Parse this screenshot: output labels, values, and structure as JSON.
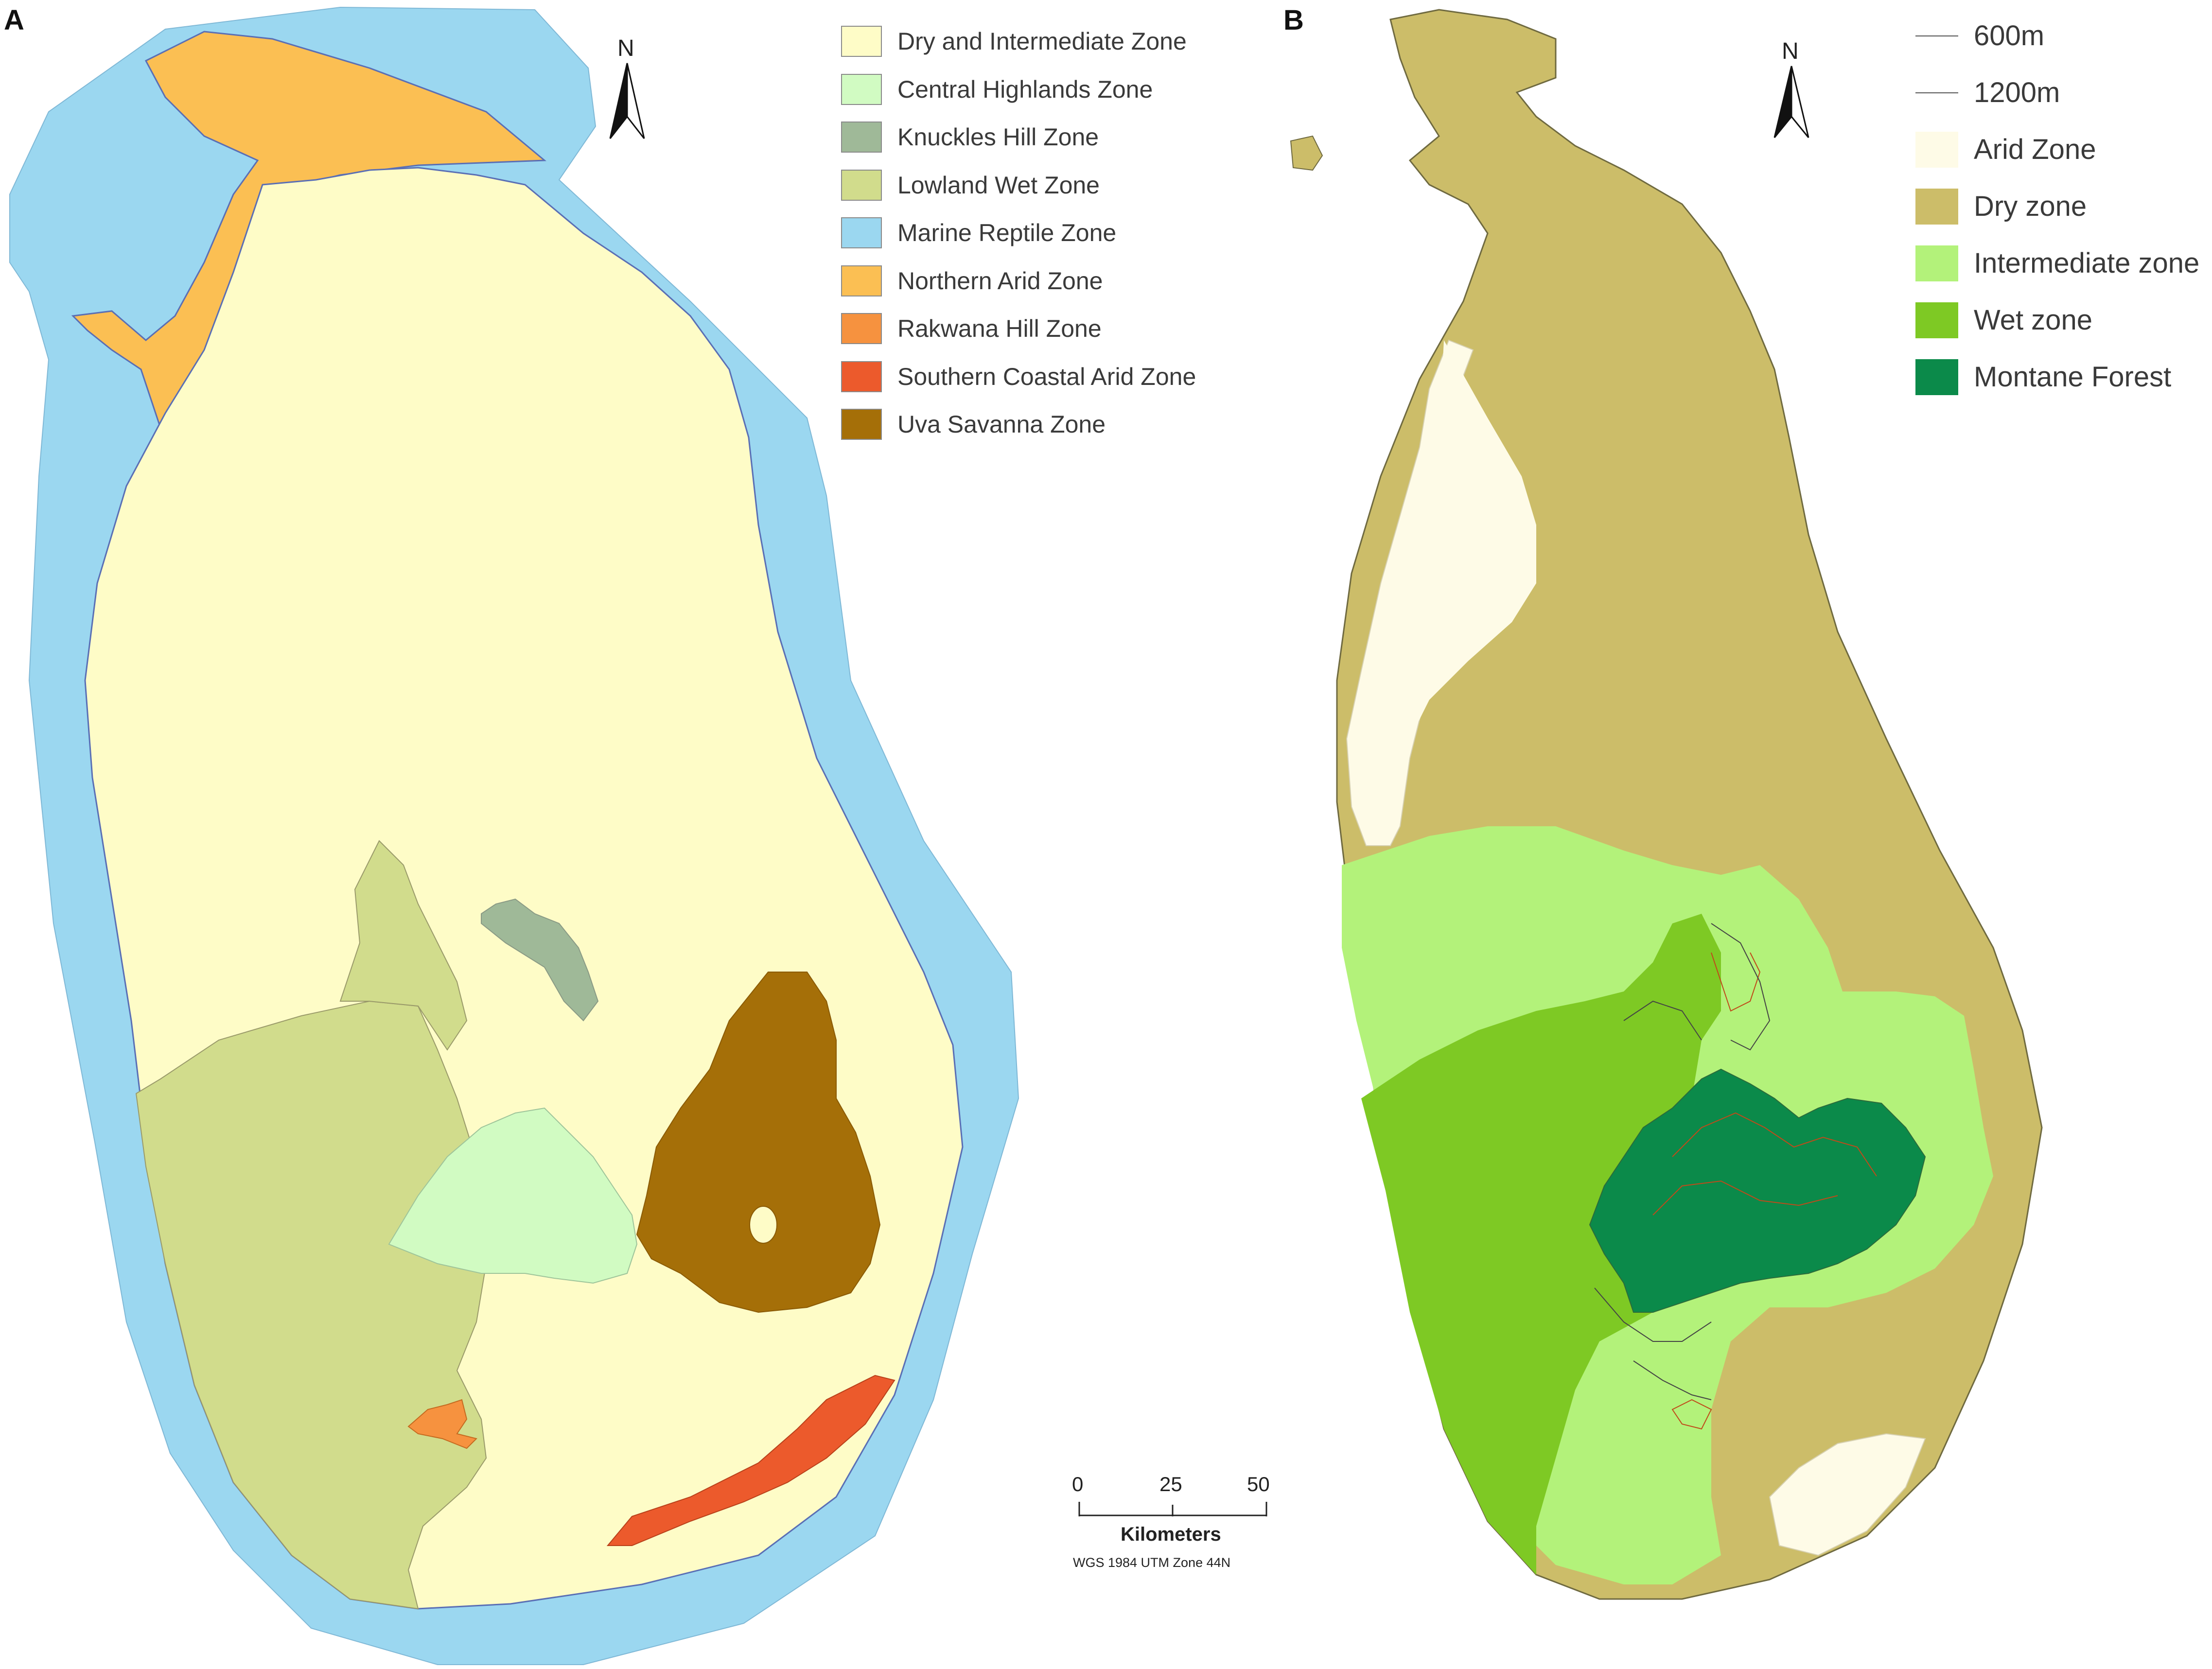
{
  "panel_a": {
    "letter": "A",
    "north_label": "N",
    "legend": [
      {
        "label": "Dry and Intermediate Zone",
        "color": "#fefcc7"
      },
      {
        "label": "Central Highlands Zone",
        "color": "#d1fbc2"
      },
      {
        "label": "Knuckles Hill Zone",
        "color": "#9fb998"
      },
      {
        "label": "Lowland Wet Zone",
        "color": "#d1dc8c"
      },
      {
        "label": "Marine Reptile Zone",
        "color": "#9bd7f0"
      },
      {
        "label": "Northern Arid Zone",
        "color": "#fbbf53"
      },
      {
        "label": "Rakwana Hill Zone",
        "color": "#f6923f"
      },
      {
        "label": "Southern Coastal Arid Zone",
        "color": "#ec5a2c"
      },
      {
        "label": "Uva Savanna Zone",
        "color": "#a56f08"
      }
    ]
  },
  "panel_b": {
    "letter": "B",
    "north_label": "N",
    "contour_legend": [
      {
        "label": "600m"
      },
      {
        "label": "1200m"
      }
    ],
    "legend": [
      {
        "label": "Arid Zone",
        "color": "#fefbe7"
      },
      {
        "label": "Dry zone",
        "color": "#ccbd69"
      },
      {
        "label": "Intermediate zone",
        "color": "#b3f27a"
      },
      {
        "label": "Wet zone",
        "color": "#7ec924"
      },
      {
        "label": "Montane Forest",
        "color": "#0b8a4a"
      }
    ]
  },
  "scalebar": {
    "ticks": [
      "0",
      "25",
      "50"
    ],
    "unit": "Kilometers",
    "projection": "WGS 1984 UTM Zone 44N"
  }
}
